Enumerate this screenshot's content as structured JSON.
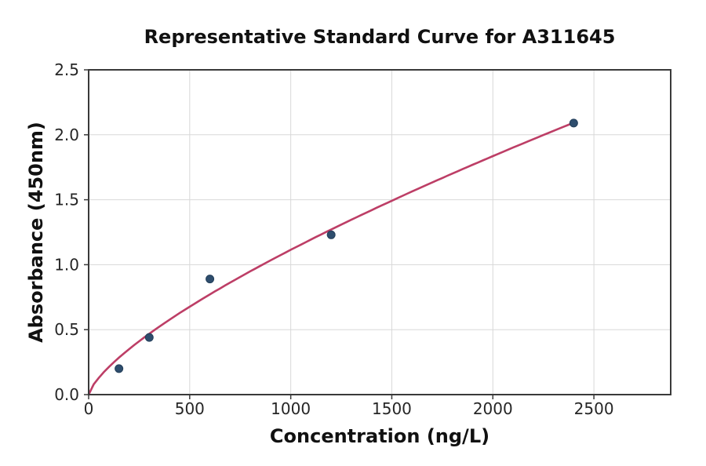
{
  "chart_data": {
    "type": "scatter",
    "title": "Representative Standard Curve for A311645",
    "xlabel": "Concentration (ng/L)",
    "ylabel": "Absorbance (450nm)",
    "xlim": [
      0,
      2880
    ],
    "ylim": [
      0,
      2.5
    ],
    "x_ticks": [
      0,
      500,
      1000,
      1500,
      2000,
      2500
    ],
    "x_tick_labels": [
      "0",
      "500",
      "1000",
      "1500",
      "2000",
      "2500"
    ],
    "y_ticks": [
      0.0,
      0.5,
      1.0,
      1.5,
      2.0,
      2.5
    ],
    "y_tick_labels": [
      "0.0",
      "0.5",
      "1.0",
      "1.5",
      "2.0",
      "2.5"
    ],
    "grid": true,
    "legend": "none",
    "points": [
      [
        150,
        0.2
      ],
      [
        300,
        0.44
      ],
      [
        600,
        0.89
      ],
      [
        1200,
        1.23
      ],
      [
        2400,
        2.09
      ]
    ],
    "fit_curve": {
      "model": "power",
      "equation": "y = 0.00771 * x^0.72",
      "a": 0.00771,
      "b": 0.72,
      "x_start": 0,
      "x_end": 2400
    },
    "colors": {
      "curve": "#bd3e66",
      "point": "#2e4d6d",
      "point_edge": "#243f5a",
      "grid": "#d8d8d8",
      "spine": "#3a3a3a",
      "tick_text": "#262626",
      "background": "#ffffff"
    }
  }
}
